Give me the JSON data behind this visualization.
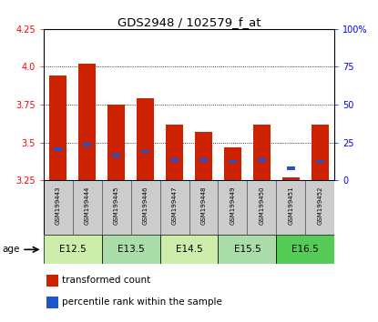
{
  "title": "GDS2948 / 102579_f_at",
  "samples": [
    "GSM199443",
    "GSM199444",
    "GSM199445",
    "GSM199446",
    "GSM199447",
    "GSM199448",
    "GSM199449",
    "GSM199450",
    "GSM199451",
    "GSM199452"
  ],
  "red_values": [
    3.94,
    4.02,
    3.75,
    3.79,
    3.62,
    3.57,
    3.47,
    3.62,
    3.27,
    3.62
  ],
  "blue_values_abs": [
    3.455,
    3.487,
    3.415,
    3.44,
    3.385,
    3.385,
    3.375,
    3.385,
    3.33,
    3.375
  ],
  "ymin": 3.25,
  "ymax": 4.25,
  "yticks_left": [
    3.25,
    3.5,
    3.75,
    4.0,
    4.25
  ],
  "yticks_right": [
    0,
    25,
    50,
    75,
    100
  ],
  "right_ylabels": [
    "0",
    "25",
    "50",
    "75",
    "100%"
  ],
  "hgrid_lines": [
    3.5,
    3.75,
    4.0
  ],
  "age_groups": [
    {
      "label": "E12.5",
      "cols": [
        0,
        1
      ],
      "color": "#cceeaa"
    },
    {
      "label": "E13.5",
      "cols": [
        2,
        3
      ],
      "color": "#aaddaa"
    },
    {
      "label": "E14.5",
      "cols": [
        4,
        5
      ],
      "color": "#cceeaa"
    },
    {
      "label": "E15.5",
      "cols": [
        6,
        7
      ],
      "color": "#aaddaa"
    },
    {
      "label": "E16.5",
      "cols": [
        8,
        9
      ],
      "color": "#55cc55"
    }
  ],
  "bar_color_red": "#cc2200",
  "bar_color_blue": "#2255cc",
  "bar_width": 0.6,
  "bg_color": "#ffffff",
  "sample_bg": "#cccccc"
}
